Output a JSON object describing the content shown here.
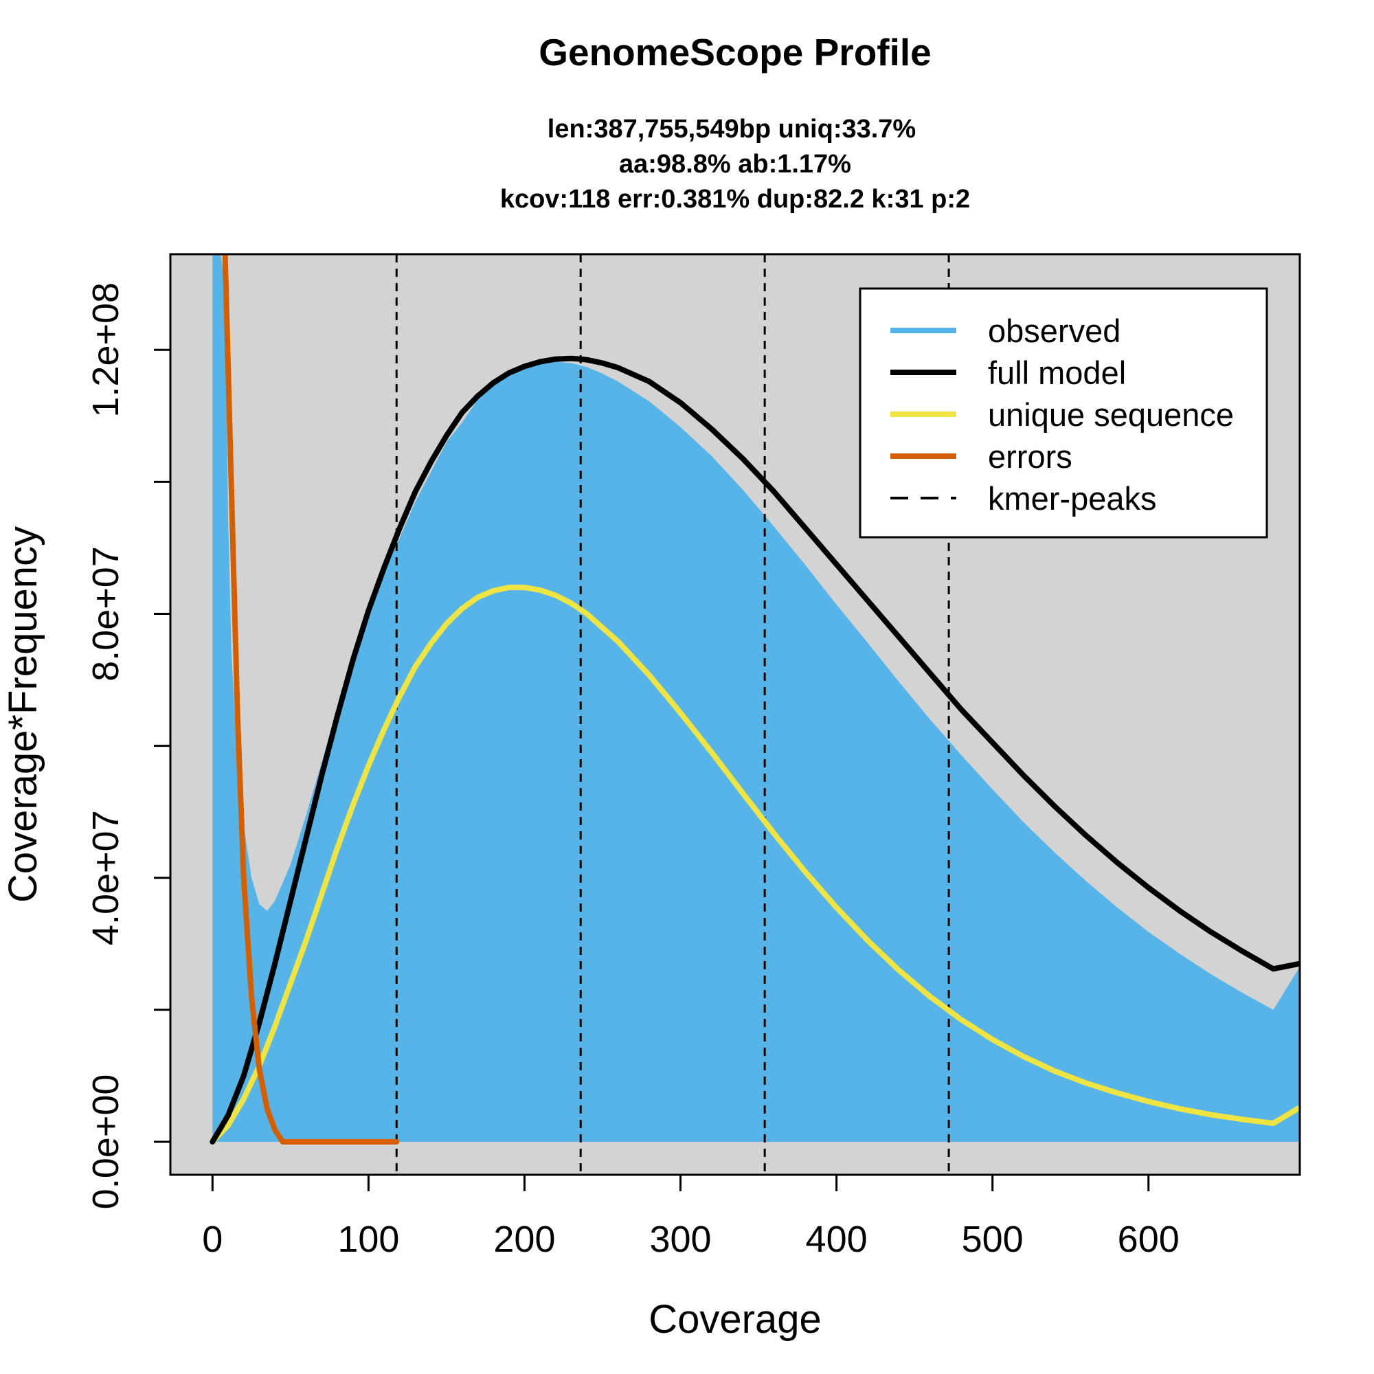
{
  "chart_data": {
    "type": "area",
    "title": "GenomeScope Profile",
    "subtitle_lines": [
      "len:387,755,549bp uniq:33.7%",
      "aa:98.8% ab:1.17%",
      "kcov:118 err:0.381%  dup:82.2  k:31 p:2"
    ],
    "xlabel": "Coverage",
    "ylabel": "Coverage*Frequency",
    "xlim": [
      -27,
      697
    ],
    "ylim": [
      -5000000,
      134500000
    ],
    "x_ticks": [
      0,
      100,
      200,
      300,
      400,
      500,
      600
    ],
    "x_tick_labels": [
      "0",
      "100",
      "200",
      "300",
      "400",
      "500",
      "600"
    ],
    "y_ticks": [
      0,
      20000000,
      40000000,
      60000000,
      80000000,
      100000000,
      120000000
    ],
    "y_tick_labels": [
      "0.0e+00",
      "",
      "4.0e+07",
      "",
      "8.0e+07",
      "",
      "1.2e+08"
    ],
    "kmer_peaks": [
      118,
      236,
      354,
      472
    ],
    "legend_position": "top-right",
    "colors": {
      "observed": "#56B4E9",
      "full_model": "#000000",
      "unique_sequence": "#F0E442",
      "errors": "#D55E00",
      "kmer_peaks": "#000000",
      "plot_background": "#D3D3D3"
    },
    "legend": [
      {
        "label": "observed",
        "color": "#56B4E9",
        "style": "solid"
      },
      {
        "label": "full model",
        "color": "#000000",
        "style": "solid"
      },
      {
        "label": "unique sequence",
        "color": "#F0E442",
        "style": "solid"
      },
      {
        "label": "errors",
        "color": "#D55E00",
        "style": "solid"
      },
      {
        "label": "kmer-peaks",
        "color": "#000000",
        "style": "dashed"
      }
    ],
    "series": [
      {
        "name": "observed",
        "x": [
          0,
          5,
          8,
          10,
          12,
          15,
          20,
          25,
          30,
          35,
          40,
          50,
          60,
          70,
          80,
          90,
          100,
          110,
          120,
          130,
          140,
          150,
          160,
          170,
          180,
          190,
          200,
          210,
          220,
          230,
          240,
          250,
          260,
          280,
          300,
          320,
          340,
          360,
          380,
          400,
          420,
          440,
          460,
          480,
          500,
          520,
          540,
          560,
          580,
          600,
          620,
          640,
          660,
          680,
          697
        ],
        "y": [
          135000000,
          135000000,
          130000000,
          95000000,
          75000000,
          61000000,
          48000000,
          40000000,
          36000000,
          35000000,
          36500000,
          42000000,
          49500000,
          57500000,
          65500000,
          73000000,
          80000000,
          86500000,
          91500000,
          97000000,
          101500000,
          106000000,
          109000000,
          112500000,
          114500000,
          116500000,
          117500000,
          118000000,
          118200000,
          118000000,
          117400000,
          116400000,
          115200000,
          112200000,
          108300000,
          103900000,
          98800000,
          93200000,
          87400000,
          81400000,
          75600000,
          69700000,
          64000000,
          58600000,
          53400000,
          48400000,
          43800000,
          39500000,
          35500000,
          31800000,
          28500000,
          25400000,
          22600000,
          20000000,
          26500000
        ]
      },
      {
        "name": "full model",
        "x": [
          0,
          10,
          20,
          30,
          40,
          50,
          60,
          70,
          80,
          90,
          100,
          110,
          120,
          130,
          140,
          150,
          160,
          170,
          180,
          190,
          200,
          210,
          220,
          230,
          236,
          240,
          250,
          260,
          280,
          300,
          320,
          340,
          360,
          380,
          400,
          420,
          440,
          460,
          480,
          500,
          520,
          540,
          560,
          580,
          600,
          620,
          640,
          660,
          680,
          697
        ],
        "y": [
          0,
          4000000,
          10000000,
          18000000,
          27000000,
          36500000,
          46000000,
          55500000,
          64500000,
          73000000,
          80500000,
          87000000,
          93000000,
          98500000,
          103000000,
          107000000,
          110500000,
          113000000,
          115000000,
          116500000,
          117500000,
          118200000,
          118600000,
          118700000,
          118600000,
          118500000,
          118000000,
          117300000,
          115200000,
          112000000,
          108000000,
          103500000,
          98500000,
          93000000,
          87500000,
          82000000,
          76500000,
          71000000,
          65500000,
          60500000,
          55500000,
          50800000,
          46400000,
          42300000,
          38500000,
          35000000,
          31800000,
          28900000,
          26200000,
          27000000
        ]
      },
      {
        "name": "unique sequence",
        "x": [
          0,
          10,
          20,
          30,
          40,
          50,
          60,
          70,
          80,
          90,
          100,
          110,
          120,
          130,
          140,
          150,
          160,
          170,
          180,
          190,
          196,
          200,
          210,
          220,
          230,
          240,
          260,
          280,
          300,
          320,
          340,
          360,
          380,
          400,
          420,
          440,
          460,
          480,
          500,
          520,
          540,
          560,
          580,
          600,
          620,
          640,
          660,
          680,
          697
        ],
        "y": [
          0,
          2500000,
          6500000,
          11500000,
          17500000,
          24000000,
          30500000,
          37500000,
          44500000,
          51000000,
          57000000,
          62500000,
          67500000,
          72000000,
          75500000,
          78500000,
          80800000,
          82500000,
          83500000,
          84000000,
          84000000,
          84000000,
          83600000,
          82800000,
          81600000,
          80000000,
          75800000,
          70700000,
          65000000,
          59000000,
          52800000,
          46700000,
          40900000,
          35500000,
          30500000,
          26000000,
          22000000,
          18500000,
          15500000,
          12900000,
          10700000,
          8900000,
          7400000,
          6100000,
          5000000,
          4100000,
          3400000,
          2800000,
          5200000
        ]
      },
      {
        "name": "errors",
        "x": [
          0,
          8,
          12,
          16,
          20,
          25,
          30,
          35,
          40,
          45,
          50,
          80,
          118
        ],
        "y": [
          135000000,
          135000000,
          100000000,
          65000000,
          40000000,
          22000000,
          11000000,
          5000000,
          1800000,
          0,
          0,
          0,
          0
        ]
      }
    ]
  }
}
